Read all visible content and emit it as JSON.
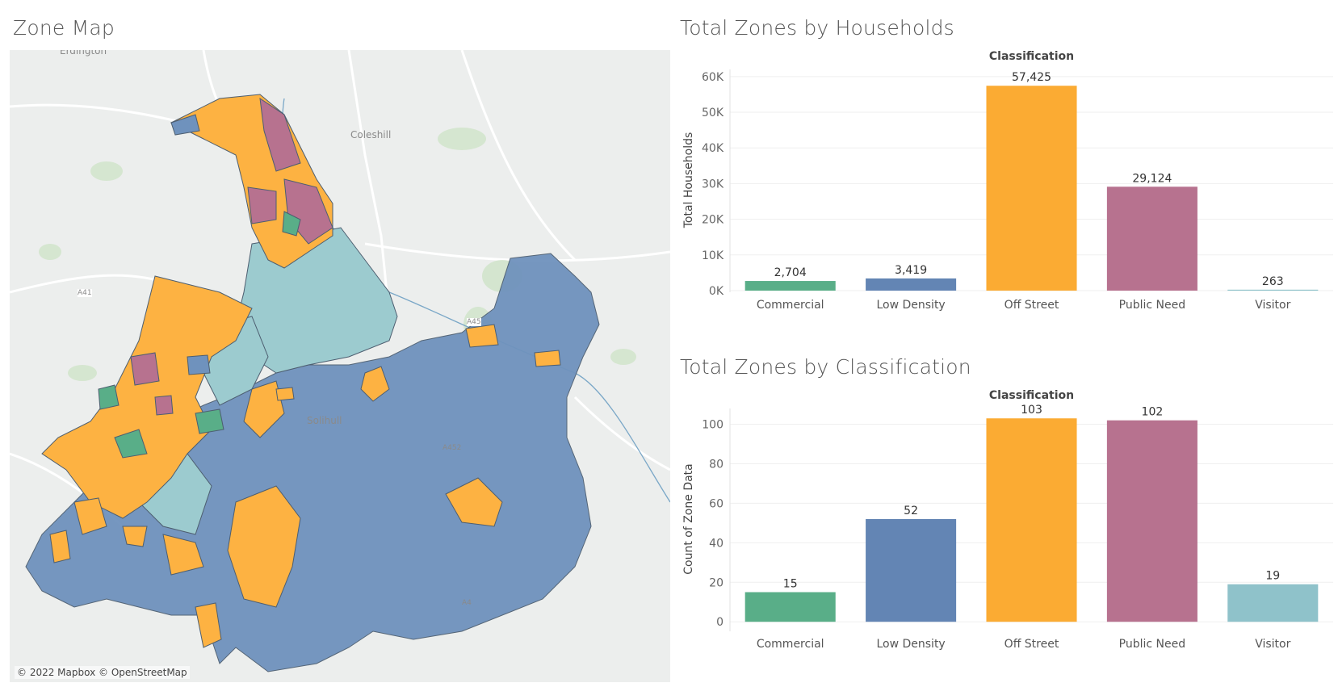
{
  "map": {
    "title": "Zone Map",
    "attribution": "© 2022 Mapbox © OpenStreetMap",
    "place_labels": [
      "Erdington",
      "Coleshill",
      "Solihull",
      "A41",
      "A45",
      "A452",
      "A4"
    ],
    "colors": {
      "Commercial": "#59ae88",
      "Low Density": "#6385b4",
      "Off Street": "#fbab33",
      "Public Need": "#b7728f",
      "Visitor": "#8fc2ca"
    }
  },
  "charts": {
    "households": {
      "title": "Total Zones by Households"
    },
    "classification": {
      "title": "Total Zones by Classification"
    }
  },
  "chart_data": [
    {
      "type": "bar",
      "title": "Total Zones by Households",
      "column_header": "Classification",
      "ylabel": "Total Households",
      "categories": [
        "Commercial",
        "Low Density",
        "Off Street",
        "Public Need",
        "Visitor"
      ],
      "values": [
        2704,
        3419,
        57425,
        29124,
        263
      ],
      "value_labels": [
        "2,704",
        "3,419",
        "57,425",
        "29,124",
        "263"
      ],
      "yticks": [
        0,
        10000,
        20000,
        30000,
        40000,
        50000,
        60000
      ],
      "ytick_labels": [
        "0K",
        "10K",
        "20K",
        "30K",
        "40K",
        "50K",
        "60K"
      ],
      "ylim": [
        0,
        62000
      ],
      "colors": [
        "#59ae88",
        "#6385b4",
        "#fbab33",
        "#b7728f",
        "#8fc2ca"
      ],
      "grid": true
    },
    {
      "type": "bar",
      "title": "Total Zones by Classification",
      "column_header": "Classification",
      "ylabel": "Count of Zone Data",
      "categories": [
        "Commercial",
        "Low Density",
        "Off Street",
        "Public Need",
        "Visitor"
      ],
      "values": [
        15,
        52,
        103,
        102,
        19
      ],
      "value_labels": [
        "15",
        "52",
        "103",
        "102",
        "19"
      ],
      "yticks": [
        0,
        20,
        40,
        60,
        80,
        100
      ],
      "ytick_labels": [
        "0",
        "20",
        "40",
        "60",
        "80",
        "100"
      ],
      "ylim": [
        -4,
        108
      ],
      "colors": [
        "#59ae88",
        "#6385b4",
        "#fbab33",
        "#b7728f",
        "#8fc2ca"
      ],
      "grid": true
    }
  ]
}
